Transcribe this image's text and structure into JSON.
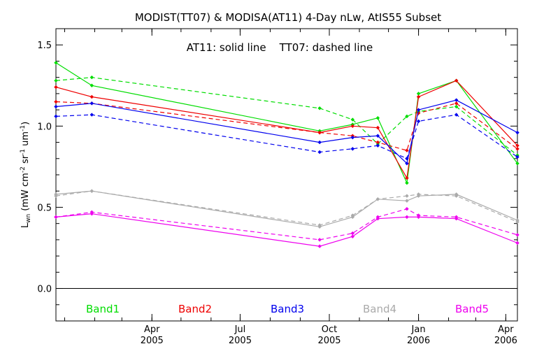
{
  "chart_data": {
    "type": "line",
    "title": "MODIST(TT07) & MODISA(AT11) 4-Day nLw, AtIS55 Subset",
    "annotation": "AT11: solid line    TT07: dashed line",
    "ylabel": "L_wn (mW cm^-2 sr^-1 um^-1)",
    "ylabel_main": "L",
    "ylabel_sub": "wn",
    "ylabel_rest": " (mW cm",
    "ylabel_sup1": "-2",
    "ylabel_mid": " sr",
    "ylabel_sup2": "-1",
    "ylabel_mid2": " um",
    "ylabel_sup3": "-1",
    "ylabel_end": ")",
    "xlabel": "",
    "ylim": [
      -0.2,
      1.6
    ],
    "y_ticks": [
      {
        "v": 0.0,
        "label": "0.0"
      },
      {
        "v": 0.5,
        "label": "0.5"
      },
      {
        "v": 1.0,
        "label": "1.0"
      },
      {
        "v": 1.5,
        "label": "1.5"
      }
    ],
    "xlim": [
      "2004-12-23",
      "2006-04-13"
    ],
    "x_ticks": [
      {
        "date": "2005-04-01",
        "label1": "Apr",
        "label2": "2005"
      },
      {
        "date": "2005-07-01",
        "label1": "Jul",
        "label2": "2005"
      },
      {
        "date": "2005-10-01",
        "label1": "Oct",
        "label2": "2005"
      },
      {
        "date": "2006-01-01",
        "label1": "Jan",
        "label2": "2006"
      },
      {
        "date": "2006-04-01",
        "label1": "Apr",
        "label2": "2006"
      }
    ],
    "zero_line": 0.0,
    "grid": false,
    "legend_position": "bottom",
    "series": [
      {
        "name": "Band1",
        "color": "#00dd00",
        "solid": [
          [
            "2004-12-23",
            1.39
          ],
          [
            "2005-01-29",
            1.25
          ],
          [
            "2005-09-21",
            0.97
          ],
          [
            "2005-10-25",
            1.01
          ],
          [
            "2005-11-20",
            1.05
          ],
          [
            "2005-12-20",
            0.65
          ],
          [
            "2006-01-01",
            1.2
          ],
          [
            "2006-02-09",
            1.28
          ],
          [
            "2006-04-13",
            0.77
          ]
        ],
        "dashed": [
          [
            "2004-12-23",
            1.28
          ],
          [
            "2005-01-29",
            1.3
          ],
          [
            "2005-09-21",
            1.11
          ],
          [
            "2005-10-25",
            1.04
          ],
          [
            "2005-11-20",
            0.89
          ],
          [
            "2005-12-20",
            1.06
          ],
          [
            "2006-01-01",
            1.09
          ],
          [
            "2006-02-09",
            1.12
          ],
          [
            "2006-04-13",
            0.82
          ]
        ]
      },
      {
        "name": "Band2",
        "color": "#ee0000",
        "solid": [
          [
            "2004-12-23",
            1.24
          ],
          [
            "2005-01-29",
            1.18
          ],
          [
            "2005-09-21",
            0.96
          ],
          [
            "2005-10-25",
            1.0
          ],
          [
            "2005-11-20",
            0.99
          ],
          [
            "2005-12-20",
            0.68
          ],
          [
            "2006-01-01",
            1.18
          ],
          [
            "2006-02-09",
            1.28
          ],
          [
            "2006-04-13",
            0.88
          ]
        ],
        "dashed": [
          [
            "2004-12-23",
            1.15
          ],
          [
            "2005-01-29",
            1.14
          ],
          [
            "2005-09-21",
            0.96
          ],
          [
            "2005-10-25",
            0.94
          ],
          [
            "2005-11-20",
            0.9
          ],
          [
            "2005-12-20",
            0.85
          ],
          [
            "2006-01-01",
            1.08
          ],
          [
            "2006-02-09",
            1.14
          ],
          [
            "2006-04-13",
            0.86
          ]
        ]
      },
      {
        "name": "Band3",
        "color": "#0000ee",
        "solid": [
          [
            "2004-12-23",
            1.12
          ],
          [
            "2005-01-29",
            1.14
          ],
          [
            "2005-09-21",
            0.9
          ],
          [
            "2005-10-25",
            0.93
          ],
          [
            "2005-11-20",
            0.94
          ],
          [
            "2005-12-20",
            0.77
          ],
          [
            "2006-01-01",
            1.1
          ],
          [
            "2006-02-09",
            1.16
          ],
          [
            "2006-04-13",
            0.96
          ]
        ],
        "dashed": [
          [
            "2004-12-23",
            1.06
          ],
          [
            "2005-01-29",
            1.07
          ],
          [
            "2005-09-21",
            0.84
          ],
          [
            "2005-10-25",
            0.86
          ],
          [
            "2005-11-20",
            0.88
          ],
          [
            "2005-12-20",
            0.8
          ],
          [
            "2006-01-01",
            1.03
          ],
          [
            "2006-02-09",
            1.07
          ],
          [
            "2006-04-13",
            0.81
          ]
        ]
      },
      {
        "name": "Band4",
        "color": "#aaaaaa",
        "solid": [
          [
            "2004-12-23",
            0.58
          ],
          [
            "2005-01-29",
            0.6
          ],
          [
            "2005-09-21",
            0.38
          ],
          [
            "2005-10-25",
            0.44
          ],
          [
            "2005-11-20",
            0.55
          ],
          [
            "2005-12-20",
            0.54
          ],
          [
            "2006-01-01",
            0.57
          ],
          [
            "2006-02-09",
            0.58
          ],
          [
            "2006-04-13",
            0.42
          ]
        ],
        "dashed": [
          [
            "2004-12-23",
            0.57
          ],
          [
            "2005-01-29",
            0.6
          ],
          [
            "2005-09-21",
            0.39
          ],
          [
            "2005-10-25",
            0.45
          ],
          [
            "2005-11-20",
            0.55
          ],
          [
            "2005-12-20",
            0.57
          ],
          [
            "2006-01-01",
            0.58
          ],
          [
            "2006-02-09",
            0.57
          ],
          [
            "2006-04-13",
            0.41
          ]
        ]
      },
      {
        "name": "Band5",
        "color": "#ee00ee",
        "solid": [
          [
            "2004-12-23",
            0.44
          ],
          [
            "2005-01-29",
            0.46
          ],
          [
            "2005-09-21",
            0.26
          ],
          [
            "2005-10-25",
            0.32
          ],
          [
            "2005-11-20",
            0.43
          ],
          [
            "2005-12-20",
            0.44
          ],
          [
            "2006-01-01",
            0.44
          ],
          [
            "2006-02-09",
            0.43
          ],
          [
            "2006-04-13",
            0.28
          ]
        ],
        "dashed": [
          [
            "2004-12-23",
            0.44
          ],
          [
            "2005-01-29",
            0.47
          ],
          [
            "2005-09-21",
            0.3
          ],
          [
            "2005-10-25",
            0.34
          ],
          [
            "2005-11-20",
            0.44
          ],
          [
            "2005-12-20",
            0.49
          ],
          [
            "2006-01-01",
            0.45
          ],
          [
            "2006-02-09",
            0.44
          ],
          [
            "2006-04-13",
            0.33
          ]
        ]
      }
    ]
  }
}
